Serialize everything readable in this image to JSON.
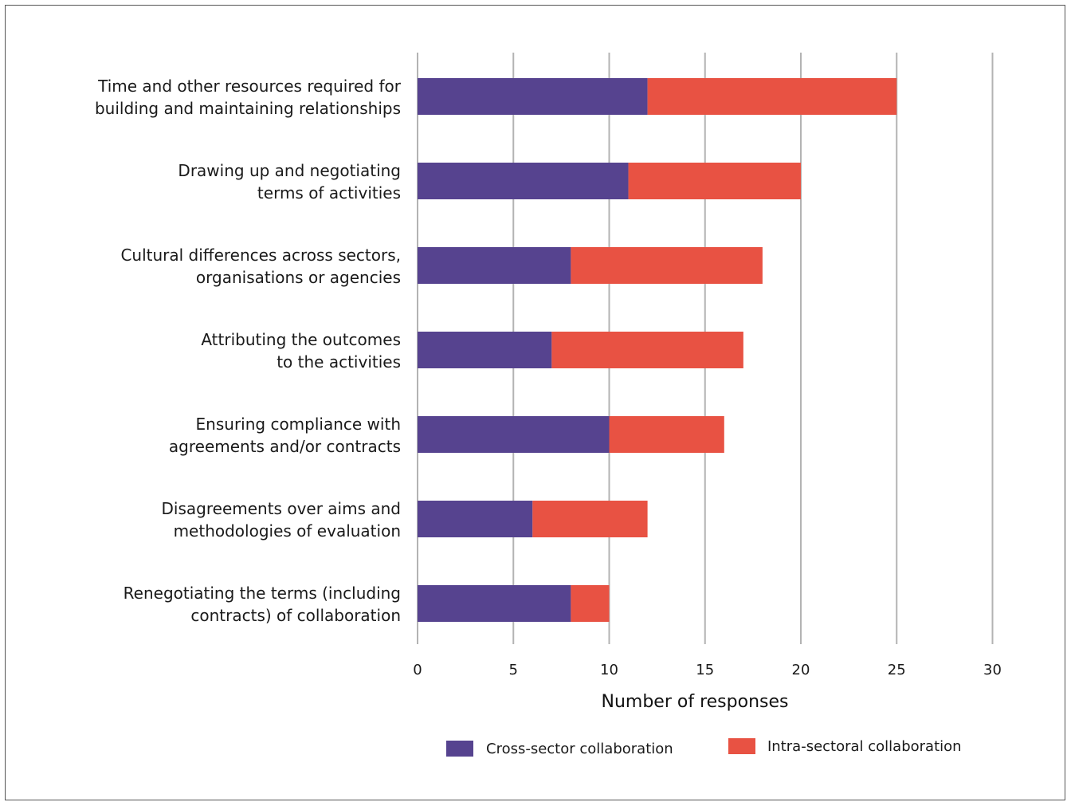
{
  "chart_data": {
    "type": "bar",
    "orientation": "horizontal",
    "stacked": true,
    "title": "",
    "xlabel": "Number of responses",
    "ylabel": "",
    "xlim": [
      0,
      30
    ],
    "x_ticks": [
      0,
      5,
      10,
      15,
      20,
      25,
      30
    ],
    "grid": true,
    "legend_position": "bottom",
    "categories": [
      [
        "Time and other resources required for",
        "building and maintaining relationships"
      ],
      [
        "Drawing up and negotiating",
        "terms of activities"
      ],
      [
        "Cultural differences across sectors,",
        "organisations or agencies"
      ],
      [
        "Attributing the outcomes",
        "to the activities"
      ],
      [
        "Ensuring compliance with",
        "agreements and/or contracts"
      ],
      [
        "Disagreements over aims and",
        "methodologies of evaluation"
      ],
      [
        "Renegotiating the terms (including",
        "contracts) of collaboration"
      ]
    ],
    "series": [
      {
        "name": "Cross-sector collaboration",
        "color": "#56438f",
        "values": [
          12,
          11,
          8,
          7,
          10,
          6,
          8
        ]
      },
      {
        "name": "Intra-sectoral collaboration",
        "color": "#e85243",
        "values": [
          13,
          9,
          10,
          10,
          6,
          6,
          2
        ]
      }
    ]
  }
}
